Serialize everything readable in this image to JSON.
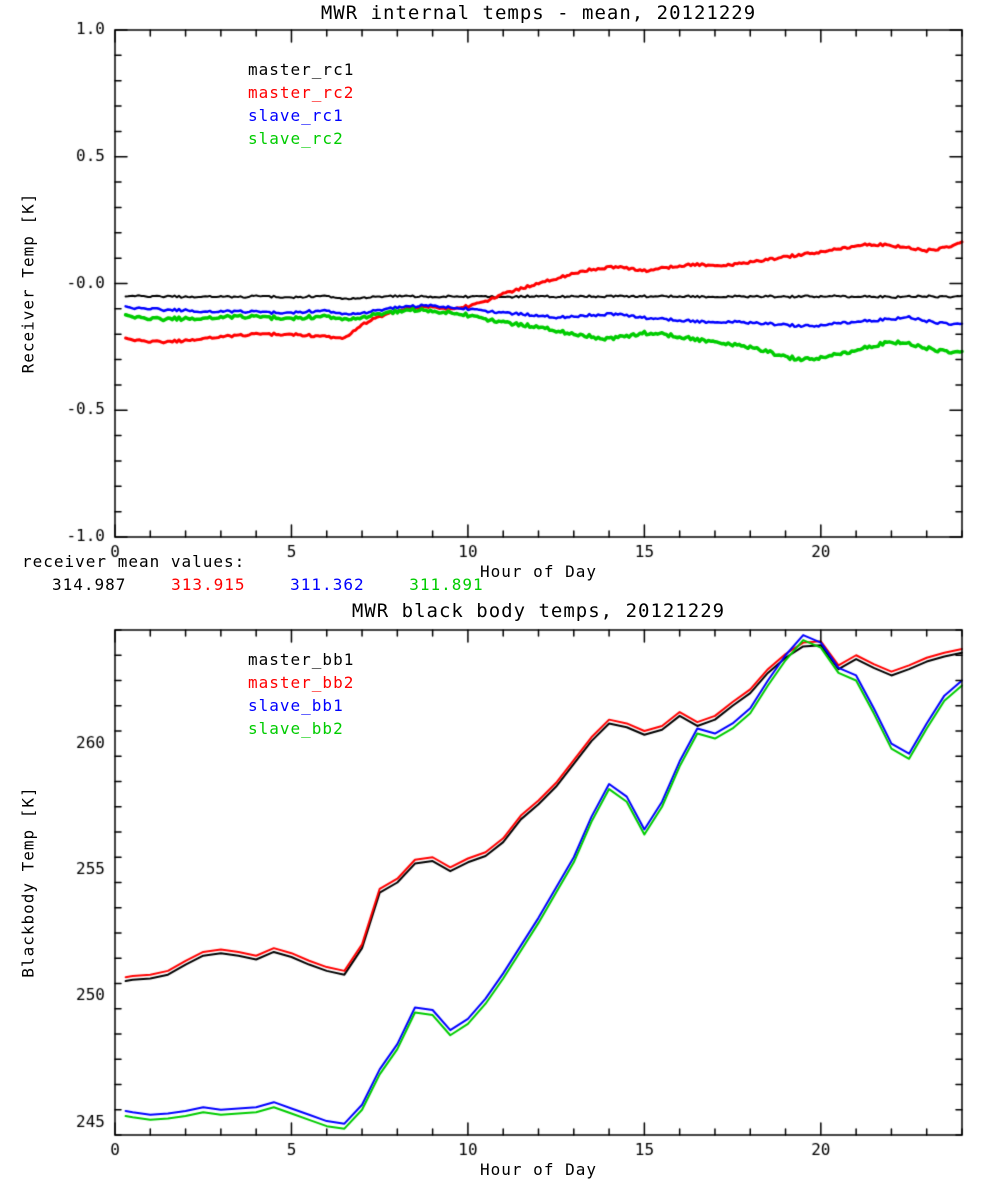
{
  "between": {
    "label": "receiver mean values:",
    "values": [
      {
        "text": "314.987",
        "color": "#000000"
      },
      {
        "text": "313.915",
        "color": "#ff0000"
      },
      {
        "text": "311.362",
        "color": "#0000ff"
      },
      {
        "text": "311.891",
        "color": "#00cc00"
      }
    ]
  },
  "chart_data": [
    {
      "type": "line",
      "title": "MWR internal temps - mean, 20121229",
      "xlabel": "Hour of Day",
      "ylabel": "Receiver Temp [K]",
      "xlim": [
        0,
        24
      ],
      "ylim": [
        -1.0,
        1.0
      ],
      "xticks": [
        0,
        5,
        10,
        15,
        20
      ],
      "xtick_labels": [
        "0",
        "5",
        "10",
        "15",
        "20"
      ],
      "xminor": 1,
      "yticks": [
        -1.0,
        -0.5,
        0.0,
        0.5,
        1.0
      ],
      "ytick_labels": [
        "-1.0",
        "-0.5",
        "-0.0",
        "0.5",
        "1.0"
      ],
      "yminor": 0.1,
      "grid": false,
      "legend_position": "upper-left-inside",
      "x": [
        0.3,
        0.5,
        1,
        1.5,
        2,
        2.5,
        3,
        3.5,
        4,
        4.5,
        5,
        5.5,
        6,
        6.5,
        7,
        7.5,
        8,
        8.5,
        9,
        9.5,
        10,
        10.5,
        11,
        11.5,
        12,
        12.5,
        13,
        13.5,
        14,
        14.5,
        15,
        15.5,
        16,
        16.5,
        17,
        17.5,
        18,
        18.5,
        19,
        19.5,
        20,
        20.5,
        21,
        21.5,
        22,
        22.5,
        23,
        23.5,
        24
      ],
      "series": [
        {
          "name": "master_rc1",
          "color": "#000000",
          "width": 2,
          "noise": 0.004,
          "values": [
            -0.055,
            -0.05,
            -0.052,
            -0.05,
            -0.053,
            -0.05,
            -0.051,
            -0.054,
            -0.05,
            -0.052,
            -0.055,
            -0.051,
            -0.05,
            -0.06,
            -0.055,
            -0.052,
            -0.05,
            -0.051,
            -0.053,
            -0.05,
            -0.052,
            -0.05,
            -0.054,
            -0.051,
            -0.05,
            -0.052,
            -0.05,
            -0.051,
            -0.05,
            -0.052,
            -0.05,
            -0.051,
            -0.05,
            -0.052,
            -0.054,
            -0.05,
            -0.051,
            -0.05,
            -0.053,
            -0.05,
            -0.051,
            -0.05,
            -0.052,
            -0.05,
            -0.054,
            -0.051,
            -0.05,
            -0.053,
            -0.052
          ]
        },
        {
          "name": "master_rc2",
          "color": "#ff0000",
          "width": 3,
          "noise": 0.005,
          "values": [
            -0.22,
            -0.225,
            -0.23,
            -0.23,
            -0.225,
            -0.215,
            -0.21,
            -0.205,
            -0.2,
            -0.2,
            -0.2,
            -0.205,
            -0.21,
            -0.215,
            -0.16,
            -0.13,
            -0.11,
            -0.095,
            -0.09,
            -0.1,
            -0.09,
            -0.07,
            -0.04,
            -0.02,
            0.0,
            0.02,
            0.04,
            0.055,
            0.065,
            0.06,
            0.05,
            0.06,
            0.07,
            0.075,
            0.07,
            0.075,
            0.085,
            0.095,
            0.105,
            0.115,
            0.125,
            0.135,
            0.15,
            0.155,
            0.15,
            0.14,
            0.13,
            0.14,
            0.16
          ]
        },
        {
          "name": "slave_rc1",
          "color": "#0000ff",
          "width": 2.5,
          "noise": 0.005,
          "values": [
            -0.095,
            -0.1,
            -0.1,
            -0.105,
            -0.105,
            -0.11,
            -0.11,
            -0.11,
            -0.112,
            -0.115,
            -0.115,
            -0.11,
            -0.108,
            -0.12,
            -0.115,
            -0.105,
            -0.095,
            -0.09,
            -0.085,
            -0.095,
            -0.1,
            -0.108,
            -0.115,
            -0.12,
            -0.128,
            -0.133,
            -0.13,
            -0.125,
            -0.12,
            -0.127,
            -0.135,
            -0.14,
            -0.145,
            -0.15,
            -0.154,
            -0.15,
            -0.154,
            -0.158,
            -0.163,
            -0.168,
            -0.165,
            -0.157,
            -0.15,
            -0.145,
            -0.14,
            -0.133,
            -0.148,
            -0.158,
            -0.163
          ]
        },
        {
          "name": "slave_rc2",
          "color": "#00cc00",
          "width": 3.5,
          "noise": 0.007,
          "values": [
            -0.13,
            -0.135,
            -0.14,
            -0.14,
            -0.138,
            -0.135,
            -0.133,
            -0.13,
            -0.132,
            -0.135,
            -0.137,
            -0.133,
            -0.13,
            -0.14,
            -0.132,
            -0.12,
            -0.112,
            -0.105,
            -0.108,
            -0.115,
            -0.125,
            -0.14,
            -0.152,
            -0.163,
            -0.172,
            -0.185,
            -0.2,
            -0.21,
            -0.218,
            -0.21,
            -0.195,
            -0.2,
            -0.21,
            -0.222,
            -0.23,
            -0.24,
            -0.25,
            -0.268,
            -0.29,
            -0.3,
            -0.292,
            -0.28,
            -0.262,
            -0.245,
            -0.23,
            -0.238,
            -0.255,
            -0.268,
            -0.275
          ]
        }
      ]
    },
    {
      "type": "line",
      "title": "MWR black body temps, 20121229",
      "xlabel": "Hour of Day",
      "ylabel": "Blackbody Temp [K]",
      "xlim": [
        0,
        24
      ],
      "ylim": [
        244.5,
        264.5
      ],
      "xticks": [
        0,
        5,
        10,
        15,
        20
      ],
      "xtick_labels": [
        "0",
        "5",
        "10",
        "15",
        "20"
      ],
      "xminor": 1,
      "yticks": [
        245,
        250,
        255,
        260
      ],
      "ytick_labels": [
        "245",
        "250",
        "255",
        "260"
      ],
      "yminor": 1,
      "grid": false,
      "legend_position": "upper-left-inside",
      "x": [
        0.3,
        0.5,
        1,
        1.5,
        2,
        2.5,
        3,
        3.5,
        4,
        4.5,
        5,
        5.5,
        6,
        6.5,
        7,
        7.5,
        8,
        8.5,
        9,
        9.5,
        10,
        10.5,
        11,
        11.5,
        12,
        12.5,
        13,
        13.5,
        14,
        14.5,
        15,
        15.5,
        16,
        16.5,
        17,
        17.5,
        18,
        18.5,
        19,
        19.5,
        20,
        20.5,
        21,
        21.5,
        22,
        22.5,
        23,
        23.5,
        24
      ],
      "series": [
        {
          "name": "master_bb1",
          "color": "#000000",
          "width": 2,
          "noise": 0,
          "values": [
            250.6,
            250.65,
            250.7,
            250.85,
            251.25,
            251.6,
            251.7,
            251.6,
            251.45,
            251.75,
            251.55,
            251.25,
            251.0,
            250.85,
            251.9,
            254.1,
            254.5,
            255.25,
            255.35,
            254.95,
            255.3,
            255.55,
            256.1,
            257.0,
            257.6,
            258.3,
            259.2,
            260.1,
            260.8,
            260.65,
            260.35,
            260.55,
            261.1,
            260.7,
            260.95,
            261.5,
            262.0,
            262.8,
            263.4,
            263.85,
            263.9,
            262.95,
            263.35,
            263.0,
            262.7,
            262.95,
            263.25,
            263.45,
            263.6
          ]
        },
        {
          "name": "master_bb2",
          "color": "#ff0000",
          "width": 2,
          "noise": 0,
          "values": [
            250.75,
            250.8,
            250.85,
            251.0,
            251.4,
            251.75,
            251.85,
            251.75,
            251.6,
            251.9,
            251.7,
            251.4,
            251.15,
            251.0,
            252.05,
            254.25,
            254.65,
            255.4,
            255.5,
            255.1,
            255.45,
            255.7,
            256.25,
            257.15,
            257.75,
            258.45,
            259.35,
            260.25,
            260.95,
            260.8,
            260.5,
            260.7,
            261.25,
            260.85,
            261.1,
            261.65,
            262.15,
            262.95,
            263.55,
            264.0,
            264.05,
            263.1,
            263.5,
            263.15,
            262.85,
            263.1,
            263.4,
            263.6,
            263.75
          ]
        },
        {
          "name": "slave_bb1",
          "color": "#0000ff",
          "width": 2,
          "noise": 0,
          "values": [
            245.45,
            245.4,
            245.3,
            245.35,
            245.45,
            245.6,
            245.5,
            245.55,
            245.6,
            245.8,
            245.55,
            245.3,
            245.05,
            244.95,
            245.7,
            247.1,
            248.1,
            249.55,
            249.45,
            248.65,
            249.1,
            249.9,
            250.9,
            252.0,
            253.1,
            254.3,
            255.5,
            257.1,
            258.4,
            257.9,
            256.6,
            257.7,
            259.3,
            260.6,
            260.4,
            260.8,
            261.4,
            262.5,
            263.5,
            264.3,
            264.0,
            263.0,
            262.7,
            261.4,
            260.0,
            259.6,
            260.8,
            261.9,
            262.5
          ]
        },
        {
          "name": "slave_bb2",
          "color": "#00cc00",
          "width": 2,
          "noise": 0,
          "values": [
            245.25,
            245.2,
            245.1,
            245.15,
            245.25,
            245.4,
            245.3,
            245.35,
            245.4,
            245.6,
            245.35,
            245.1,
            244.85,
            244.75,
            245.5,
            246.9,
            247.9,
            249.35,
            249.25,
            248.45,
            248.9,
            249.7,
            250.7,
            251.8,
            252.9,
            254.1,
            255.3,
            256.9,
            258.2,
            257.7,
            256.4,
            257.5,
            259.1,
            260.4,
            260.2,
            260.6,
            261.2,
            262.3,
            263.3,
            264.1,
            263.8,
            262.8,
            262.5,
            261.2,
            259.8,
            259.4,
            260.6,
            261.7,
            262.3
          ]
        }
      ]
    }
  ]
}
